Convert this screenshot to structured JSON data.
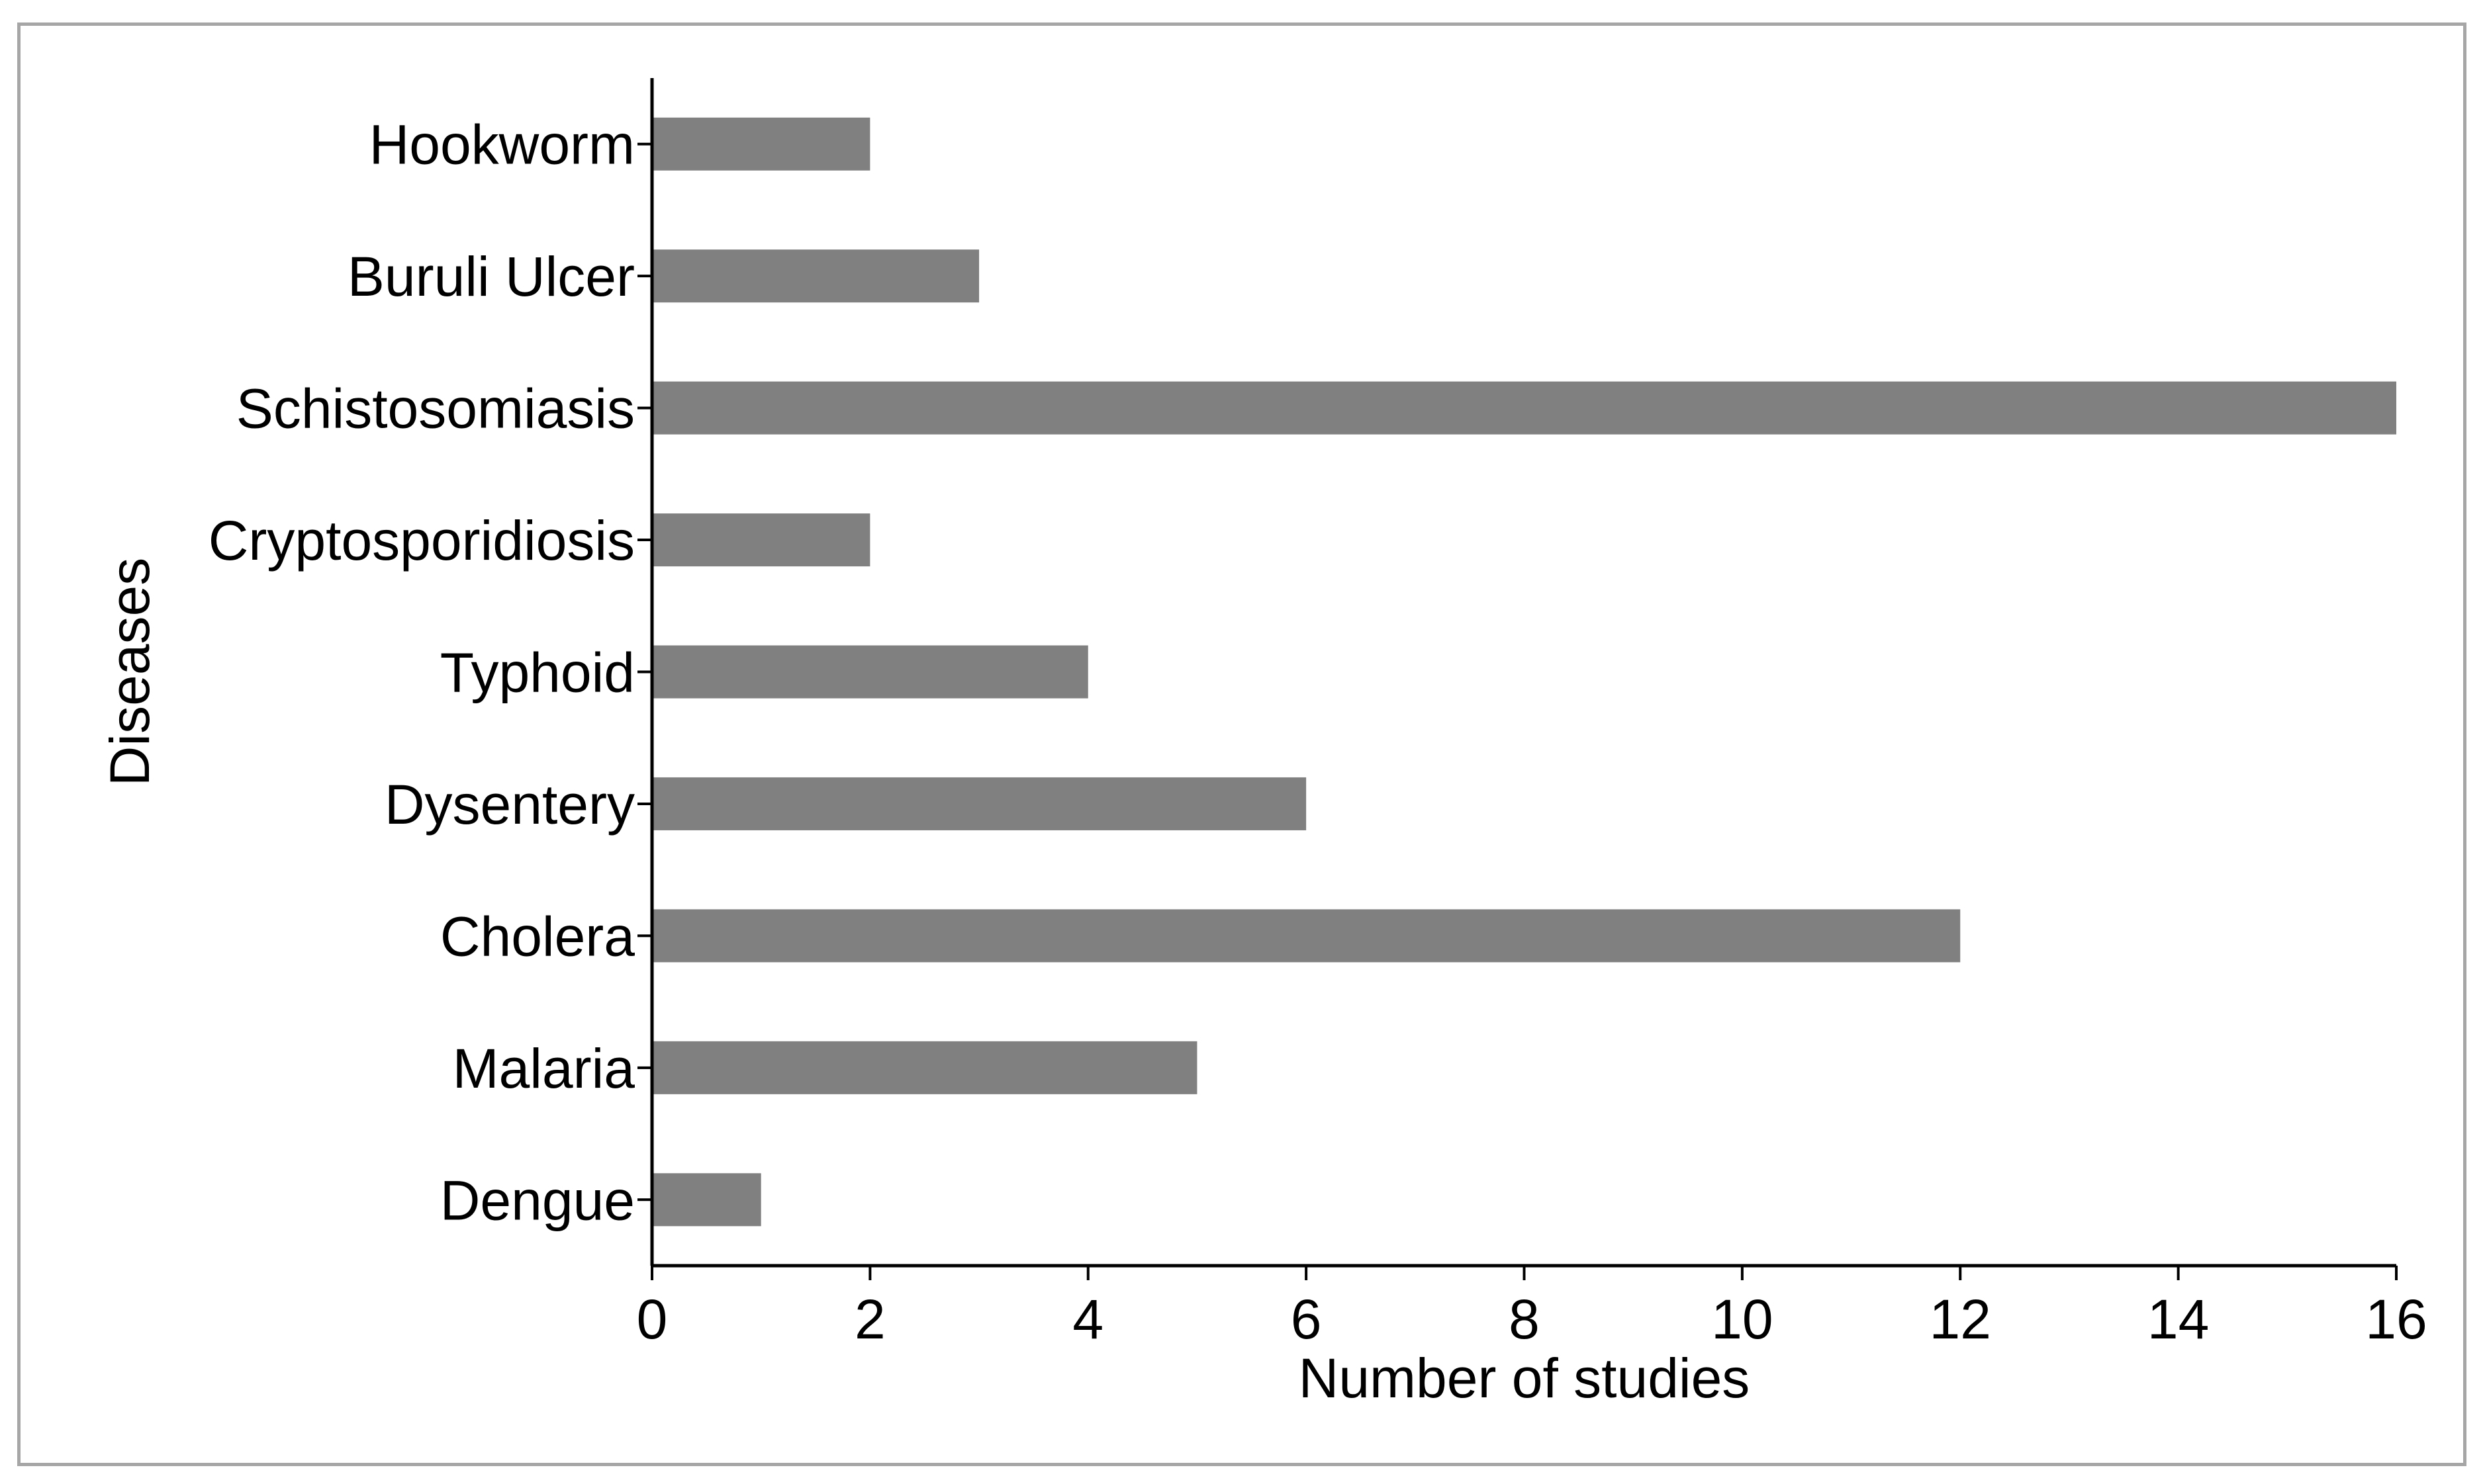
{
  "chart_data": {
    "type": "bar",
    "orientation": "horizontal",
    "categories": [
      "Hookworm",
      "Buruli Ulcer",
      "Schistosomiasis",
      "Cryptosporidiosis",
      "Typhoid",
      "Dysentery",
      "Cholera",
      "Malaria",
      "Dengue"
    ],
    "values": [
      2,
      3,
      16,
      2,
      4,
      6,
      12,
      5,
      1
    ],
    "xlabel": "Number of studies",
    "ylabel": "Diseases",
    "xlim": [
      0,
      16
    ],
    "xticks": [
      0,
      2,
      4,
      6,
      8,
      10,
      12,
      14,
      16
    ],
    "grid": false,
    "bar_color": "#808080"
  }
}
